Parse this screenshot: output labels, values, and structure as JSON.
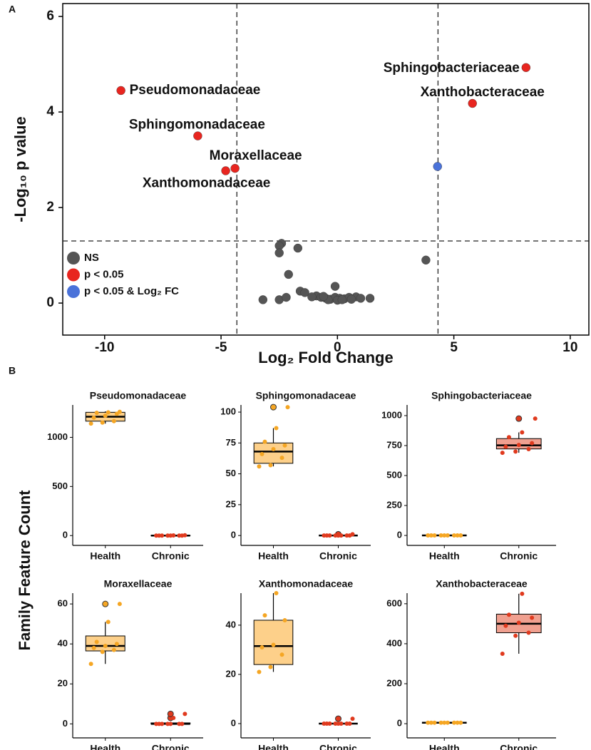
{
  "panel_labels": [
    "A",
    "B"
  ],
  "shared_ylabel": "Family Feature Count",
  "chart_data": [
    {
      "type": "scatter",
      "xlabel": "Log₂ Fold Change",
      "ylabel": "-Log₁₀ p value",
      "xlim": [
        -11.8,
        10.8
      ],
      "ylim": [
        -0.67,
        6.27
      ],
      "xticks": [
        -10,
        -5,
        0,
        5,
        10
      ],
      "yticks": [
        0,
        2,
        4,
        6
      ],
      "thresholds": {
        "x": [
          -4.32,
          4.32
        ],
        "y": 1.3
      },
      "legend_position": "bottom-left",
      "series": [
        {
          "name": "NS",
          "color": "#555555",
          "x": [
            -2.4,
            -2.5,
            -2.5,
            -1.7,
            -2.1,
            3.8,
            -3.2,
            -2.5,
            -1.6,
            -1.4,
            -2.2,
            -0.9,
            -0.7,
            -0.5,
            -0.3,
            -0.1,
            0.1,
            0.3,
            0.5,
            0.8,
            1.0,
            1.4,
            -0.1,
            -1.1,
            0.0,
            0.2,
            -0.4,
            -0.6,
            0.6
          ],
          "y": [
            1.25,
            1.2,
            1.05,
            1.15,
            0.6,
            0.9,
            0.07,
            0.07,
            0.25,
            0.22,
            0.12,
            0.15,
            0.12,
            0.1,
            0.08,
            0.12,
            0.1,
            0.09,
            0.12,
            0.13,
            0.1,
            0.1,
            0.35,
            0.13,
            0.06,
            0.07,
            0.07,
            0.14,
            0.08
          ]
        },
        {
          "name": "p < 0.05",
          "color": "#e8251f",
          "x": [
            -9.3,
            -6.0,
            -4.4,
            -4.8,
            8.1,
            5.8
          ],
          "y": [
            4.45,
            3.5,
            2.82,
            2.77,
            4.93,
            4.18
          ],
          "labels": [
            "Pseudomonadaceae",
            "Sphingomonadaceae",
            "Moraxellaceae",
            "Xanthomonadaceae",
            "Sphingobacteriaceae",
            "Xanthobacteraceae"
          ]
        },
        {
          "name": "p < 0.05 & Log₂ FC",
          "color": "#4a72d9",
          "x": [
            4.3
          ],
          "y": [
            2.86
          ]
        }
      ]
    },
    {
      "type": "box",
      "title": "Pseudomonadaceae",
      "categories": [
        "Health",
        "Chronic"
      ],
      "colors": [
        "#f5a623",
        "#e03a1e"
      ],
      "fills": [
        "#fdd08a",
        "#f0a090"
      ],
      "ylim": [
        -100,
        1330
      ],
      "yticks": [
        0,
        500,
        1000
      ],
      "groups": [
        {
          "min": 1140,
          "q1": 1165,
          "median": 1210,
          "q3": 1255,
          "max": 1265,
          "outliers": [],
          "points": [
            1140,
            1150,
            1165,
            1200,
            1220,
            1240,
            1250,
            1255,
            1260
          ]
        },
        {
          "min": 0,
          "q1": 0,
          "median": 0,
          "q3": 1,
          "max": 3,
          "outliers": [],
          "points": [
            0,
            0,
            0,
            0,
            0,
            0,
            0,
            2,
            3
          ]
        }
      ]
    },
    {
      "type": "box",
      "title": "Sphingomonadaceae",
      "categories": [
        "Health",
        "Chronic"
      ],
      "colors": [
        "#f5a623",
        "#e03a1e"
      ],
      "fills": [
        "#fdd08a",
        "#f0a090"
      ],
      "ylim": [
        -8,
        105.8
      ],
      "yticks": [
        0,
        25,
        50,
        75,
        100
      ],
      "groups": [
        {
          "min": 56,
          "q1": 58.5,
          "median": 68,
          "q3": 75,
          "max": 87,
          "outliers": [
            104
          ],
          "points": [
            56,
            57,
            63,
            66,
            70,
            73,
            76,
            87,
            104
          ]
        },
        {
          "min": 0,
          "q1": 0,
          "median": 0,
          "q3": 0,
          "max": 0,
          "outliers": [
            1
          ],
          "points": [
            0,
            0,
            0,
            0,
            0,
            0,
            0,
            0,
            1
          ]
        }
      ]
    },
    {
      "type": "box",
      "title": "Sphingobacteriaceae",
      "categories": [
        "Health",
        "Chronic"
      ],
      "colors": [
        "#f5a623",
        "#e03a1e"
      ],
      "fills": [
        "#fdd08a",
        "#f0a090"
      ],
      "ylim": [
        -83,
        1089
      ],
      "yticks": [
        0,
        250,
        500,
        750,
        1000
      ],
      "groups": [
        {
          "min": 0,
          "q1": 0,
          "median": 0,
          "q3": 0,
          "max": 0,
          "outliers": [],
          "points": [
            0,
            0,
            0,
            0,
            0,
            0,
            0,
            0,
            0
          ]
        },
        {
          "min": 690,
          "q1": 722,
          "median": 752,
          "q3": 808,
          "max": 860,
          "outliers": [
            975
          ],
          "points": [
            690,
            700,
            720,
            740,
            755,
            770,
            820,
            860,
            975
          ]
        }
      ]
    },
    {
      "type": "box",
      "title": "Moraxellaceae",
      "categories": [
        "Health",
        "Chronic"
      ],
      "colors": [
        "#f5a623",
        "#e03a1e"
      ],
      "fills": [
        "#fdd08a",
        "#f0a090"
      ],
      "ylim": [
        -7,
        65.4
      ],
      "yticks": [
        0,
        20,
        40,
        60
      ],
      "groups": [
        {
          "min": 30,
          "q1": 36.5,
          "median": 39,
          "q3": 44,
          "max": 51,
          "outliers": [
            60
          ],
          "points": [
            30,
            36,
            37,
            38,
            39,
            40,
            41,
            51,
            60
          ]
        },
        {
          "min": 0,
          "q1": 0,
          "median": 0,
          "q3": 0.5,
          "max": 1,
          "outliers": [
            3,
            5
          ],
          "points": [
            0,
            0,
            0,
            0,
            0,
            0,
            0,
            3,
            5
          ]
        }
      ]
    },
    {
      "type": "box",
      "title": "Xanthomonadaceae",
      "categories": [
        "Health",
        "Chronic"
      ],
      "colors": [
        "#f5a623",
        "#e03a1e"
      ],
      "fills": [
        "#fdd08a",
        "#f0a090"
      ],
      "ylim": [
        -5.8,
        53
      ],
      "yticks": [
        0,
        20,
        40
      ],
      "groups": [
        {
          "min": 21,
          "q1": 24,
          "median": 31.5,
          "q3": 42,
          "max": 53,
          "outliers": [],
          "points": [
            21,
            23,
            28,
            31,
            32,
            42,
            44,
            53
          ]
        },
        {
          "min": 0,
          "q1": 0,
          "median": 0,
          "q3": 0,
          "max": 0,
          "outliers": [
            2
          ],
          "points": [
            0,
            0,
            0,
            0,
            0,
            0,
            0,
            0,
            2
          ]
        }
      ]
    },
    {
      "type": "box",
      "title": "Xanthobacteraceae",
      "categories": [
        "Health",
        "Chronic"
      ],
      "colors": [
        "#f5a623",
        "#e03a1e"
      ],
      "fills": [
        "#fdd08a",
        "#f0a090"
      ],
      "ylim": [
        -71,
        653
      ],
      "yticks": [
        0,
        200,
        400,
        600
      ],
      "groups": [
        {
          "min": 5,
          "q1": 5,
          "median": 5,
          "q3": 5,
          "max": 5,
          "outliers": [],
          "points": [
            5,
            5,
            5,
            5,
            5,
            5,
            5,
            5,
            5
          ]
        },
        {
          "min": 350,
          "q1": 455,
          "median": 500,
          "q3": 548,
          "max": 650,
          "outliers": [],
          "points": [
            350,
            440,
            455,
            490,
            505,
            530,
            545,
            650
          ]
        }
      ]
    }
  ]
}
